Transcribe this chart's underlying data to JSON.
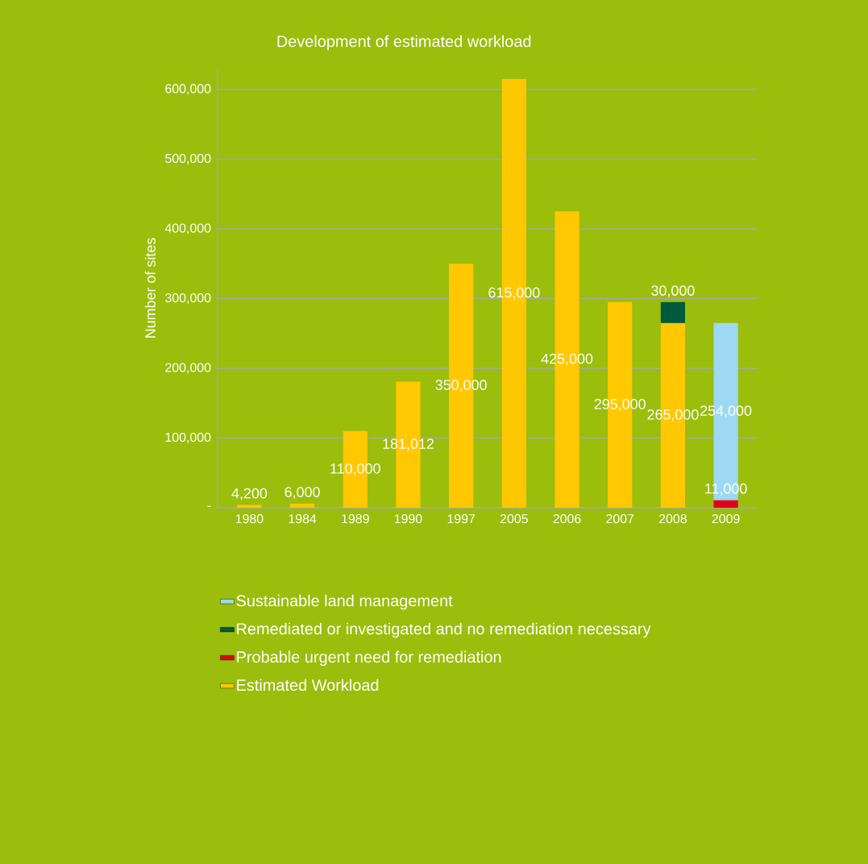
{
  "chart_data": {
    "type": "bar",
    "title": "Development of estimated workload",
    "ylabel": "Number of sites",
    "categories": [
      "1980",
      "1984",
      "1989",
      "1990",
      "1997",
      "2005",
      "2006",
      "2007",
      "2008",
      "2009"
    ],
    "stacked": true,
    "series": [
      {
        "name": "Estimated Workload",
        "color": "#ffc800",
        "values": [
          4200,
          6000,
          110000,
          181012,
          350000,
          615000,
          425000,
          295000,
          265000,
          null
        ],
        "value_labels": [
          "4,200",
          "6,000",
          "110,000",
          "181,012",
          "350,000",
          "615,000",
          "425,000",
          "295,000",
          "265,000",
          null
        ]
      },
      {
        "name": "Probable urgent need for remediation",
        "color": "#e2001a",
        "values": [
          null,
          null,
          null,
          null,
          null,
          null,
          null,
          null,
          null,
          11000
        ],
        "value_labels": [
          null,
          null,
          null,
          null,
          null,
          null,
          null,
          null,
          null,
          "11,000"
        ]
      },
      {
        "name": "Remediated or investigated and no remediation necessary",
        "color": "#005a3c",
        "values": [
          null,
          null,
          null,
          null,
          null,
          null,
          null,
          null,
          30000,
          null
        ],
        "value_labels": [
          null,
          null,
          null,
          null,
          null,
          null,
          null,
          null,
          "30,000",
          null
        ]
      },
      {
        "name": "Sustainable land management",
        "color": "#9dd9f3",
        "values": [
          null,
          null,
          null,
          null,
          null,
          null,
          null,
          null,
          null,
          254000
        ],
        "value_labels": [
          null,
          null,
          null,
          null,
          null,
          null,
          null,
          null,
          null,
          "254,000"
        ]
      }
    ],
    "ylim": [
      0,
      630000
    ],
    "yticks": [
      {
        "value": 0,
        "label": "-"
      },
      {
        "value": 100000,
        "label": "100,000"
      },
      {
        "value": 200000,
        "label": "200,000"
      },
      {
        "value": 300000,
        "label": "300,000"
      },
      {
        "value": 400000,
        "label": "400,000"
      },
      {
        "value": 500000,
        "label": "500,000"
      },
      {
        "value": 600000,
        "label": "600,000"
      }
    ],
    "grid": "y",
    "legend": "bottom left"
  }
}
